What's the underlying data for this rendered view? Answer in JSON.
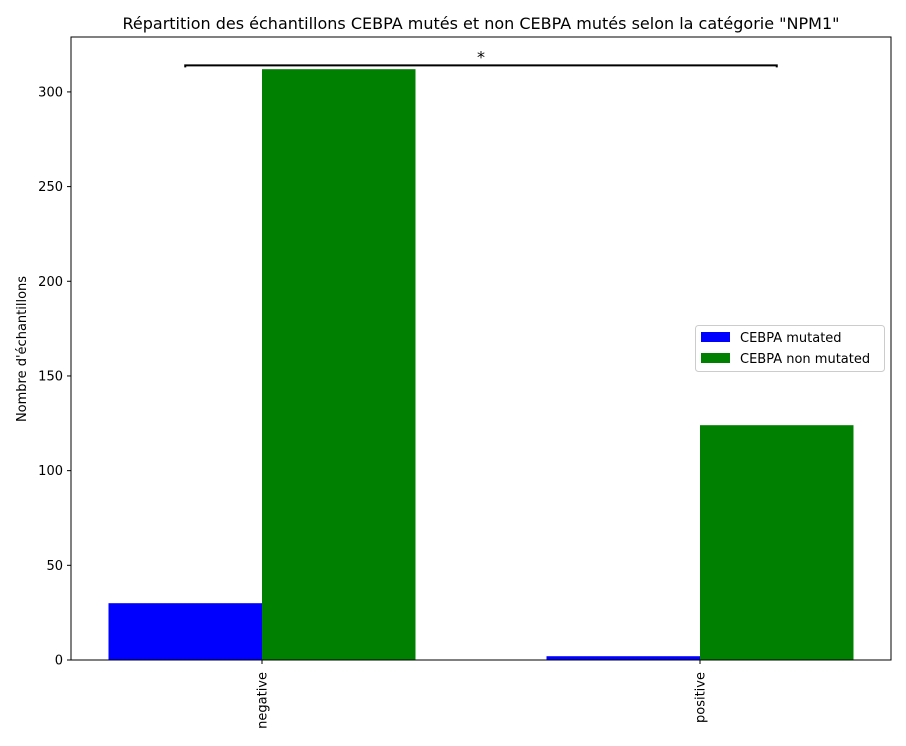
{
  "chart_data": {
    "type": "bar",
    "title": "Répartition des échantillons CEBPA mutés et non CEBPA mutés selon la catégorie \"NPM1\"",
    "xlabel": "",
    "ylabel": "Nombre d'échantillons",
    "categories": [
      "negative",
      "positive"
    ],
    "series": [
      {
        "name": "CEBPA mutated",
        "color": "#0000ff",
        "values": [
          30,
          2
        ]
      },
      {
        "name": "CEBPA non mutated",
        "color": "#008000",
        "values": [
          312,
          124
        ]
      }
    ],
    "ylim": [
      0,
      329
    ],
    "yticks": [
      0,
      50,
      100,
      150,
      200,
      250,
      300
    ],
    "legend_position": "center-right",
    "grid": false,
    "annotation": {
      "text": "*",
      "from_category": 0,
      "to_category": 1,
      "y": 314
    }
  }
}
